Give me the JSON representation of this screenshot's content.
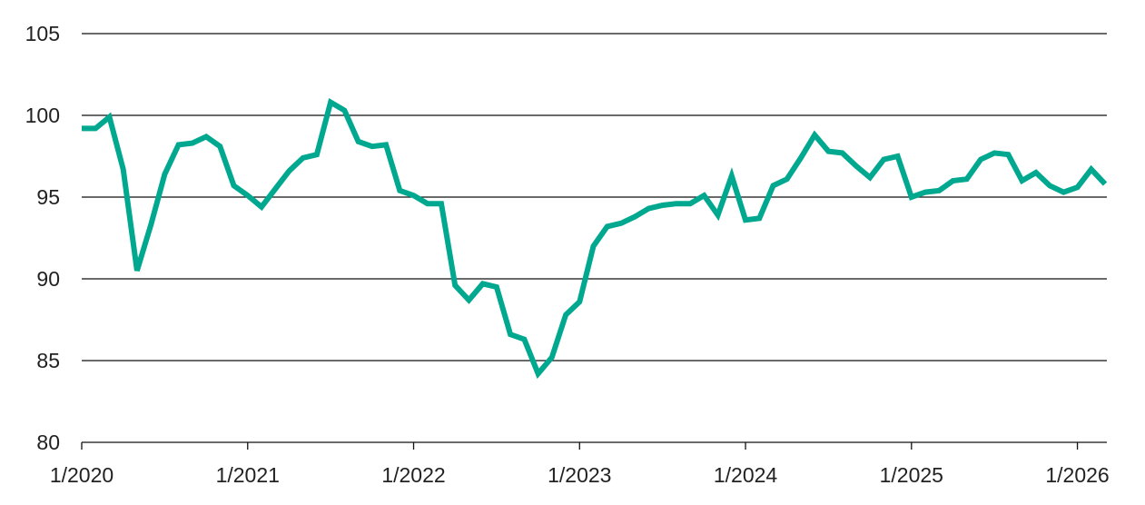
{
  "chart_data": {
    "type": "line",
    "title": "",
    "xlabel": "",
    "ylabel": "",
    "ylim": [
      80,
      105
    ],
    "yticks": [
      80,
      85,
      90,
      95,
      100,
      105
    ],
    "xlim": [
      "2020-01",
      "2026-03"
    ],
    "xticks": [
      {
        "date": "2020-01",
        "label": "1/2020"
      },
      {
        "date": "2021-01",
        "label": "1/2021"
      },
      {
        "date": "2022-01",
        "label": "1/2022"
      },
      {
        "date": "2023-01",
        "label": "1/2023"
      },
      {
        "date": "2024-01",
        "label": "1/2024"
      },
      {
        "date": "2025-01",
        "label": "1/2025"
      },
      {
        "date": "2026-01",
        "label": "1/2026"
      }
    ],
    "grid": "horizontal",
    "legend": "none",
    "series": [
      {
        "color": "#00A88F",
        "start": "2020-01",
        "frequency": "monthly",
        "values": [
          99.2,
          99.2,
          99.9,
          96.7,
          90.5,
          93.3,
          96.4,
          98.2,
          98.3,
          98.7,
          98.1,
          95.7,
          95.1,
          94.4,
          95.5,
          96.6,
          97.4,
          97.6,
          100.8,
          100.3,
          98.4,
          98.1,
          98.2,
          95.4,
          95.1,
          94.6,
          94.6,
          89.6,
          88.7,
          89.7,
          89.5,
          86.6,
          86.3,
          84.2,
          85.2,
          87.8,
          88.6,
          92.0,
          93.2,
          93.4,
          93.8,
          94.3,
          94.5,
          94.6,
          94.6,
          95.1,
          93.9,
          96.3,
          93.6,
          93.7,
          95.7,
          96.1,
          97.4,
          98.8,
          97.8,
          97.7,
          96.9,
          96.2,
          97.3,
          97.5,
          95.0,
          95.3,
          95.4,
          96.0,
          96.1,
          97.3,
          97.7,
          97.6,
          96.0,
          96.5,
          95.7,
          95.3,
          95.6,
          96.7,
          95.8
        ]
      }
    ]
  }
}
